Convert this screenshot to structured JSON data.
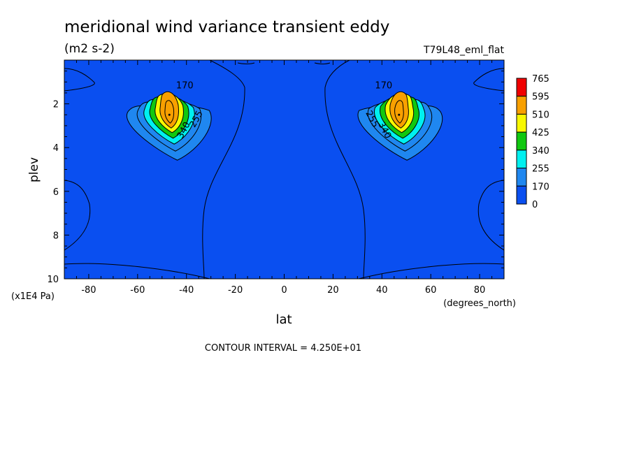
{
  "chart_data": {
    "type": "contour",
    "title": "meridional wind variance transient eddy",
    "units": "(m2 s-2)",
    "run_label": "T79L48_eml_flat",
    "xlabel": "lat",
    "x_units": "(degrees_north)",
    "ylabel": "plev",
    "y_units": "(x1E4 Pa)",
    "xlim": [
      -90,
      90
    ],
    "ylim": [
      10,
      0
    ],
    "x_ticks": [
      -80,
      -60,
      -40,
      -20,
      0,
      20,
      40,
      60,
      80
    ],
    "x_tick_labels": [
      "-80",
      "-60",
      "-40",
      "-20",
      "0",
      "20",
      "40",
      "60",
      "80"
    ],
    "y_ticks": [
      2,
      4,
      6,
      8,
      10
    ],
    "y_tick_labels": [
      "2",
      "4",
      "6",
      "8",
      "10"
    ],
    "footer": "CONTOUR INTERVAL = 4.250E+01",
    "contour_interval": 42.5,
    "contour_labels": [
      "170",
      "340",
      "255"
    ],
    "peaks": [
      {
        "lat": -47,
        "plev": 2.5
      },
      {
        "lat": 47,
        "plev": 2.5
      }
    ],
    "colorbar": {
      "levels": [
        0,
        170,
        255,
        340,
        425,
        510,
        595,
        765
      ],
      "labels": [
        "765",
        "595",
        "510",
        "425",
        "340",
        "255",
        "170",
        "0"
      ],
      "colors": [
        "#0a4ff0",
        "#1f87f0",
        "#00f0f0",
        "#10c810",
        "#f8f800",
        "#f8a000",
        "#f00000"
      ]
    },
    "grid": false
  }
}
